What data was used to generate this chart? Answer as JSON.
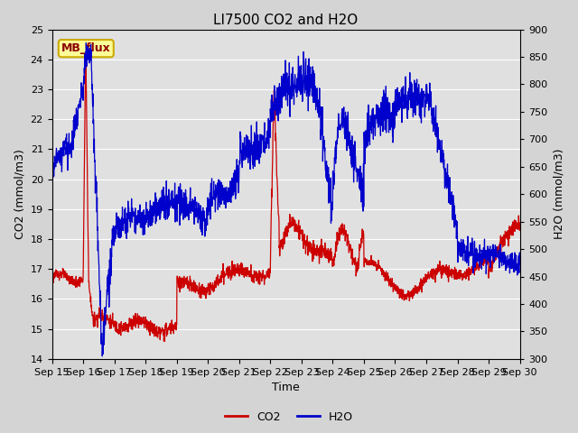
{
  "title": "LI7500 CO2 and H2O",
  "xlabel": "Time",
  "ylabel_left": "CO2 (mmol/m3)",
  "ylabel_right": "H2O (mmol/m3)",
  "co2_ylim": [
    14.0,
    25.0
  ],
  "h2o_ylim": [
    300,
    900
  ],
  "co2_yticks": [
    14.0,
    15.0,
    16.0,
    17.0,
    18.0,
    19.0,
    20.0,
    21.0,
    22.0,
    23.0,
    24.0,
    25.0
  ],
  "h2o_yticks": [
    300,
    350,
    400,
    450,
    500,
    550,
    600,
    650,
    700,
    750,
    800,
    850,
    900
  ],
  "xtick_labels": [
    "Sep 15",
    "Sep 16",
    "Sep 17",
    "Sep 18",
    "Sep 19",
    "Sep 20",
    "Sep 21",
    "Sep 22",
    "Sep 23",
    "Sep 24",
    "Sep 25",
    "Sep 26",
    "Sep 27",
    "Sep 28",
    "Sep 29",
    "Sep 30"
  ],
  "co2_color": "#cc0000",
  "h2o_color": "#0000cc",
  "fig_bg_color": "#d4d4d4",
  "plot_bg_color": "#e0e0e0",
  "grid_color": "#ffffff",
  "annotation_text": "MB_flux",
  "annotation_bg": "#ffff99",
  "annotation_border": "#ccaa00",
  "title_fontsize": 11,
  "axis_label_fontsize": 9,
  "tick_fontsize": 8,
  "legend_fontsize": 9,
  "linewidth": 0.9
}
